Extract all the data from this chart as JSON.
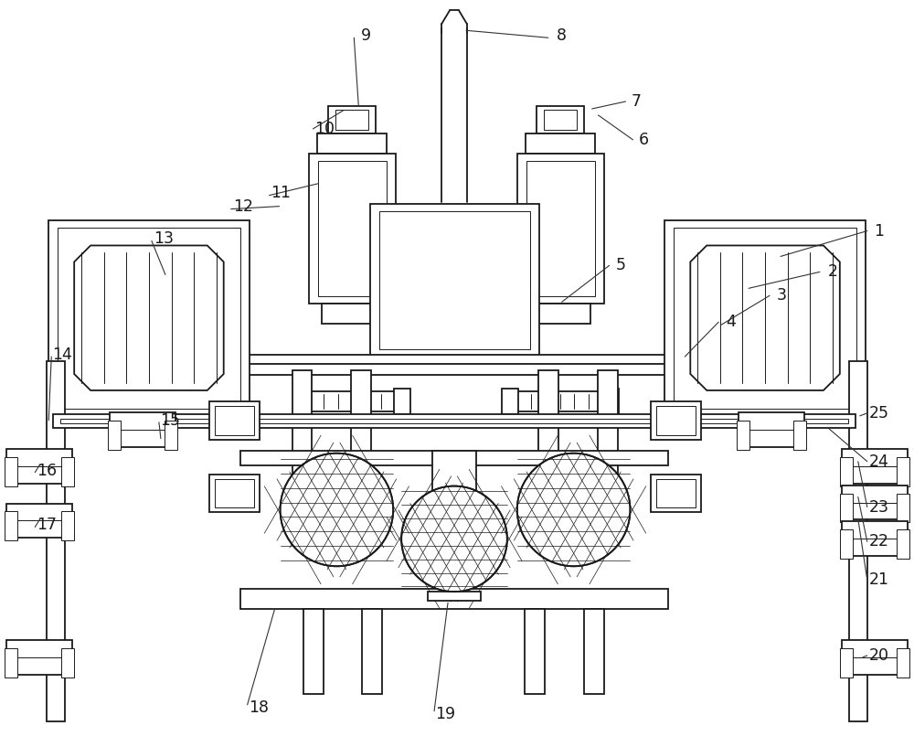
{
  "bg_color": "#ffffff",
  "line_color": "#1a1a1a",
  "lw_main": 1.3,
  "lw_thin": 0.7,
  "fig_width": 10.0,
  "fig_height": 8.17,
  "dpi": 100
}
